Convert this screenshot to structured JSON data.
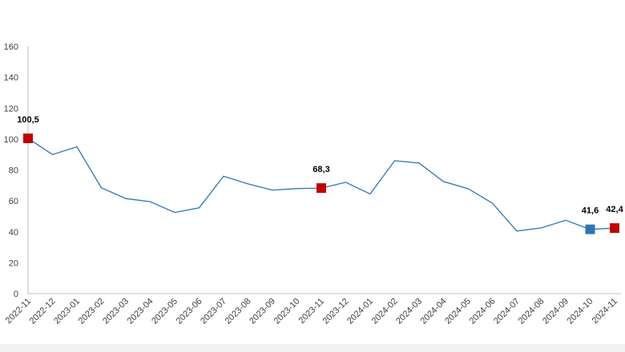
{
  "chart_data": {
    "type": "line",
    "title": "",
    "xlabel": "",
    "ylabel": "",
    "ylim": [
      0,
      160
    ],
    "yticks": [
      "0",
      "20",
      "40",
      "60",
      "80",
      "100",
      "120",
      "140",
      "160"
    ],
    "grid": false,
    "categories": [
      "2022-11",
      "2022-12",
      "2023-01",
      "2023-02",
      "2023-03",
      "2023-04",
      "2023-05",
      "2023-06",
      "2023-07",
      "2023-08",
      "2023-09",
      "2023-10",
      "2023-11",
      "2023-12",
      "2024-01",
      "2024-02",
      "2024-03",
      "2024-04",
      "2024-05",
      "2024-06",
      "2024-07",
      "2024-08",
      "2024-09",
      "2024-10",
      "2024-11"
    ],
    "series": [
      {
        "values": [
          100.5,
          90,
          95,
          68.5,
          61.5,
          59.5,
          52.5,
          55.5,
          76,
          71,
          67,
          68,
          68.3,
          72,
          64.5,
          86,
          84.5,
          72.5,
          68,
          58.5,
          40.5,
          42.5,
          47.5,
          41.6,
          42.4
        ],
        "color": "#2e75b6"
      }
    ],
    "markers": [
      {
        "index": 0,
        "label": "100,5",
        "color": "#c00000"
      },
      {
        "index": 12,
        "label": "68,3",
        "color": "#c00000"
      },
      {
        "index": 23,
        "label": "41,6",
        "color": "#2e75b6"
      },
      {
        "index": 24,
        "label": "42,4",
        "color": "#c00000"
      }
    ]
  }
}
